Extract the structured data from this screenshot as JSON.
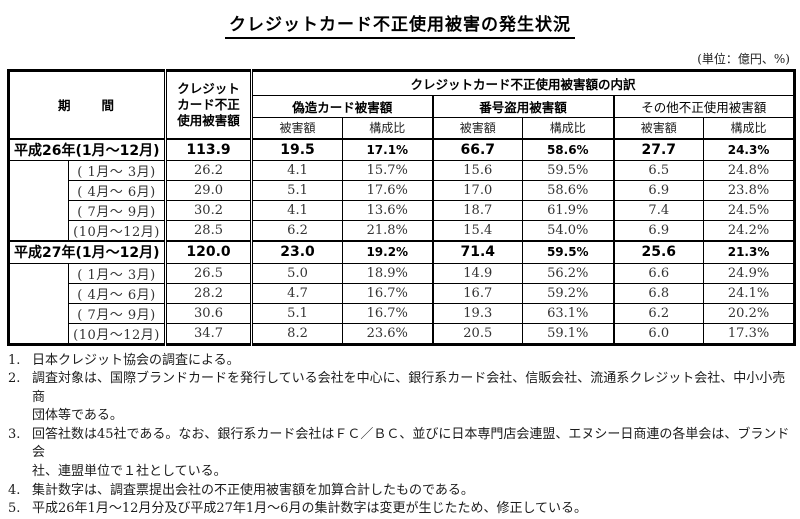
{
  "title": "クレジットカード不正使用被害の発生状況",
  "unit_note": "(単位：億円、%)",
  "table": {
    "headers": {
      "period": "期　　間",
      "total": "クレジット\nカード不正\n使用被害額",
      "breakdown": "クレジットカード不正使用被害額の内訳",
      "groups": [
        {
          "label": "偽造カード被害額"
        },
        {
          "label": "番号盗用被害額"
        },
        {
          "label": "その他不正使用被害額"
        }
      ],
      "amount": "被害額",
      "ratio": "構成比"
    },
    "blocks": [
      {
        "year_label": "平成26年(1月～12月)",
        "annual": [
          "113.9",
          "19.5",
          "17.1%",
          "66.7",
          "58.6%",
          "27.7",
          "24.3%"
        ],
        "quarters": [
          {
            "label": "( 1月～ 3月)",
            "values": [
              "26.2",
              "4.1",
              "15.7%",
              "15.6",
              "59.5%",
              "6.5",
              "24.8%"
            ]
          },
          {
            "label": "( 4月～ 6月)",
            "values": [
              "29.0",
              "5.1",
              "17.6%",
              "17.0",
              "58.6%",
              "6.9",
              "23.8%"
            ]
          },
          {
            "label": "( 7月～ 9月)",
            "values": [
              "30.2",
              "4.1",
              "13.6%",
              "18.7",
              "61.9%",
              "7.4",
              "24.5%"
            ]
          },
          {
            "label": "(10月～12月)",
            "values": [
              "28.5",
              "6.2",
              "21.8%",
              "15.4",
              "54.0%",
              "6.9",
              "24.2%"
            ]
          }
        ]
      },
      {
        "year_label": "平成27年(1月～12月)",
        "annual": [
          "120.0",
          "23.0",
          "19.2%",
          "71.4",
          "59.5%",
          "25.6",
          "21.3%"
        ],
        "quarters": [
          {
            "label": "( 1月～ 3月)",
            "values": [
              "26.5",
              "5.0",
              "18.9%",
              "14.9",
              "56.2%",
              "6.6",
              "24.9%"
            ]
          },
          {
            "label": "( 4月～ 6月)",
            "values": [
              "28.2",
              "4.7",
              "16.7%",
              "16.7",
              "59.2%",
              "6.8",
              "24.1%"
            ]
          },
          {
            "label": "( 7月～ 9月)",
            "values": [
              "30.6",
              "5.1",
              "16.7%",
              "19.3",
              "63.1%",
              "6.2",
              "20.2%"
            ]
          },
          {
            "label": "(10月～12月)",
            "values": [
              "34.7",
              "8.2",
              "23.6%",
              "20.5",
              "59.1%",
              "6.0",
              "17.3%"
            ]
          }
        ]
      }
    ]
  },
  "footnotes": [
    {
      "num": "1.",
      "text": "日本クレジット協会の調査による。"
    },
    {
      "num": "2.",
      "text": "調査対象は、国際ブランドカードを発行している会社を中心に、銀行系カード会社、信販会社、流通系クレジット会社、中小小売商\n団体等である。"
    },
    {
      "num": "3.",
      "text": "回答社数は45社である。なお、銀行系カード会社はＦＣ／ＢＣ、並びに日本専門店会連盟、エヌシー日商連の各単会は、ブランド会\n社、連盟単位で１社としている。"
    },
    {
      "num": "4.",
      "text": "集計数字は、調査票提出会社の不正使用被害額を加算合計したものである。"
    },
    {
      "num": "5.",
      "text": "平成26年1月～12月分及び平成27年1月～6月の集計数字は変更が生じたため、修正している。"
    }
  ]
}
